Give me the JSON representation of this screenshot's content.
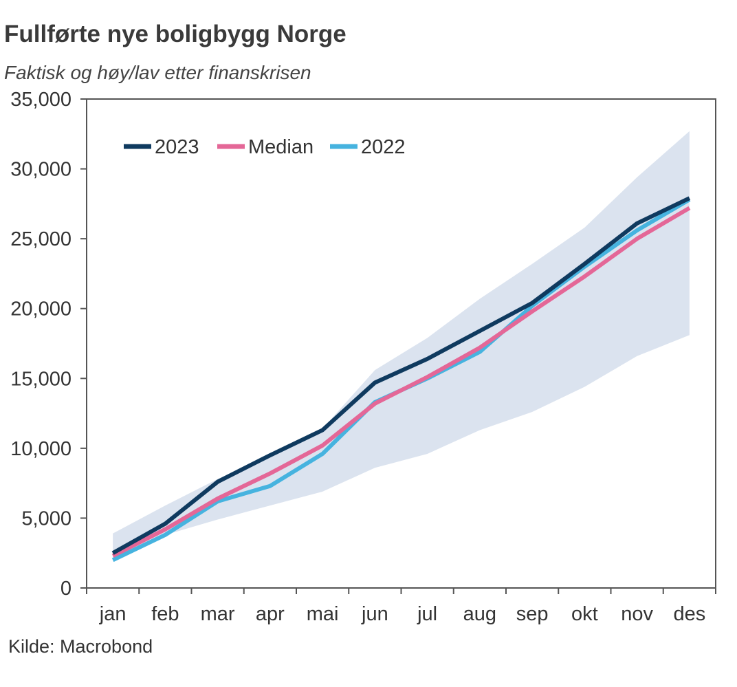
{
  "chart_data": {
    "type": "line",
    "title": "Fullførte nye boligbygg Norge",
    "subtitle": "Faktisk og høy/lav etter finanskrisen",
    "source": "Kilde: Macrobond",
    "xlabel": "",
    "ylabel": "",
    "categories": [
      "jan",
      "feb",
      "mar",
      "apr",
      "mai",
      "jun",
      "jul",
      "aug",
      "sep",
      "okt",
      "nov",
      "des"
    ],
    "ylim": [
      0,
      35000
    ],
    "yticks": [
      0,
      5000,
      10000,
      15000,
      20000,
      25000,
      30000,
      35000
    ],
    "ytick_labels": [
      "0",
      "5,000",
      "10,000",
      "15,000",
      "20,000",
      "25,000",
      "30,000",
      "35,000"
    ],
    "band": {
      "name": "Høy/lav etter finanskrisen",
      "color": "#dbe3ef",
      "high": [
        3900,
        5900,
        7800,
        9400,
        11400,
        15600,
        17900,
        20700,
        23200,
        25800,
        29400,
        32700
      ],
      "low": [
        2100,
        3800,
        4900,
        5900,
        6900,
        8600,
        9600,
        11300,
        12600,
        14400,
        16600,
        18100
      ]
    },
    "series": [
      {
        "name": "2023",
        "color": "#0f3a5f",
        "values": [
          2500,
          4600,
          7600,
          9500,
          11300,
          14700,
          16400,
          18400,
          20400,
          23200,
          26100,
          27900
        ]
      },
      {
        "name": "Median",
        "color": "#e46797",
        "values": [
          2300,
          4200,
          6400,
          8200,
          10200,
          13200,
          15100,
          17200,
          19800,
          22300,
          25000,
          27200
        ]
      },
      {
        "name": "2022",
        "color": "#46b3df",
        "values": [
          2000,
          3800,
          6200,
          7300,
          9600,
          13300,
          15000,
          16900,
          20200,
          23000,
          25600,
          27800
        ]
      }
    ],
    "legend": {
      "position": "top-left",
      "entries": [
        "2023",
        "Median",
        "2022"
      ]
    }
  }
}
